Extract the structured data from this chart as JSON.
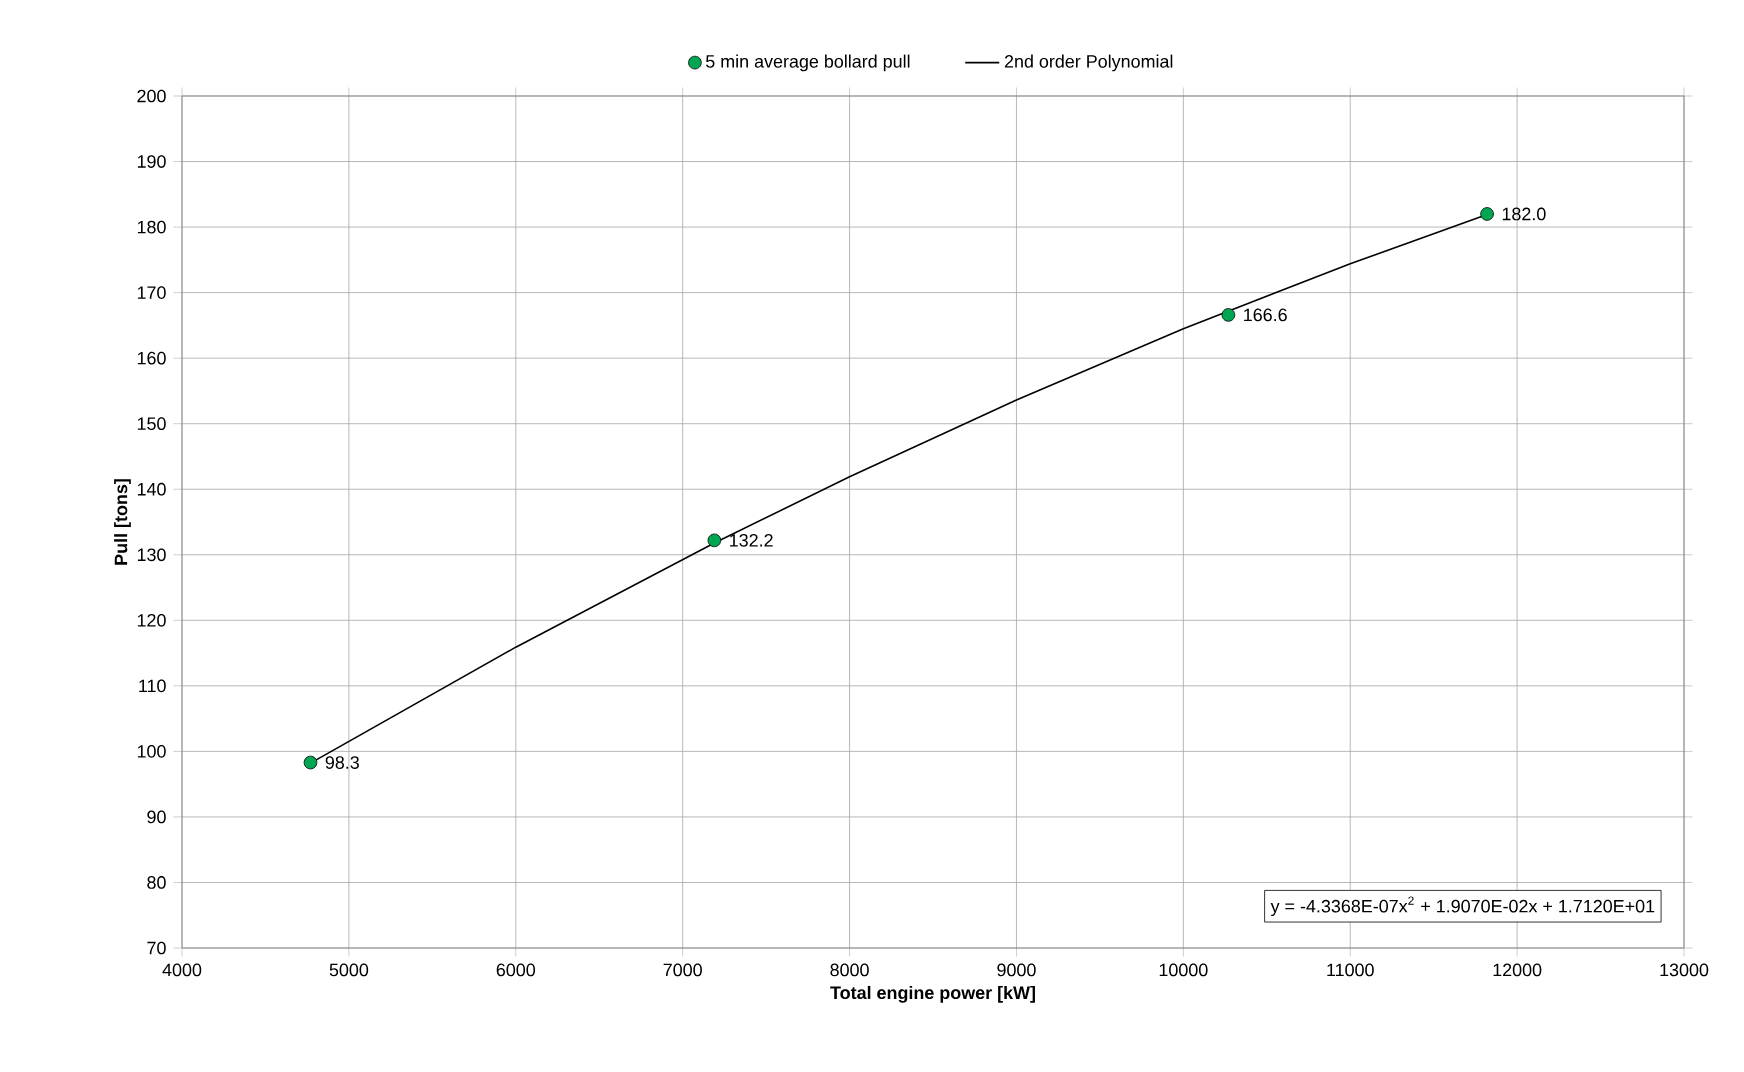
{
  "chart_data": {
    "type": "scatter",
    "xlabel": "Total engine power [kW]",
    "ylabel": "Pull [tons]",
    "xlim": [
      4000,
      13000
    ],
    "ylim": [
      70,
      200
    ],
    "xticks": [
      4000,
      5000,
      6000,
      7000,
      8000,
      9000,
      10000,
      11000,
      12000,
      13000
    ],
    "yticks": [
      70,
      80,
      90,
      100,
      110,
      120,
      130,
      140,
      150,
      160,
      170,
      180,
      190,
      200
    ],
    "grid": true,
    "legend": "top",
    "marker": "circle",
    "annotations": [
      "y = -4.3368E-07x$^{2}$ + 1.9070E-02x + 1.7120E+01"
    ],
    "series": [
      {
        "name": "5 min average bollard pull",
        "color": "#00a651",
        "x": [
          4770,
          7190,
          10270,
          11820
        ],
        "values": [
          98.3,
          132.2,
          166.6,
          182.0
        ],
        "value_labels": [
          "98.3",
          "132.2",
          "166.6",
          "182.0"
        ]
      },
      {
        "name": "2nd order Polynomial",
        "type": "line",
        "marker": "none",
        "color": "#000000",
        "x": [
          4770,
          6000,
          7190,
          8000,
          9000,
          10000,
          11000,
          11820
        ],
        "values": [
          98.2,
          115.9,
          131.8,
          141.9,
          153.6,
          164.5,
          174.4,
          181.9
        ]
      }
    ]
  }
}
